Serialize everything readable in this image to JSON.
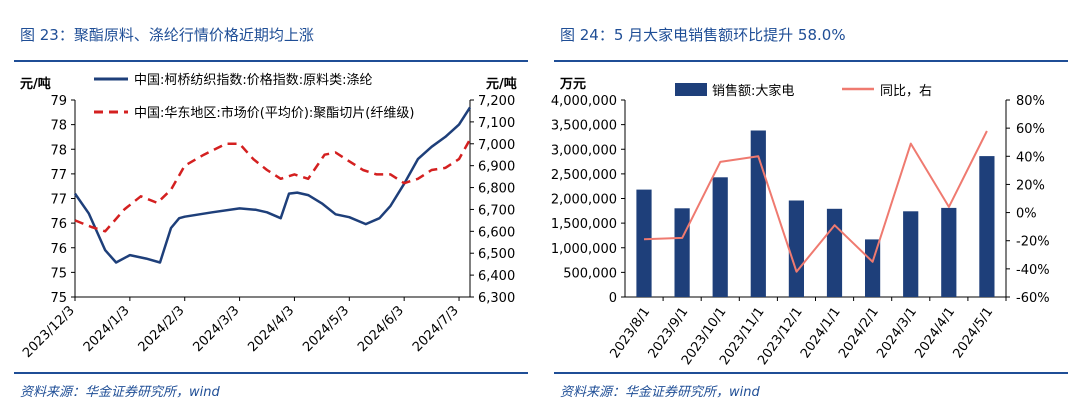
{
  "colors": {
    "brand": "#1f4e96",
    "navy": "#1e3f7a",
    "red": "#d42020",
    "salmon": "#ef7a70",
    "axis": "#000000"
  },
  "left_panel": {
    "figure_title": "图 23：聚酯原料、涤纶行情价格近期均上涨",
    "source": "资料来源：华金证券研究所，wind",
    "chart_data": {
      "type": "line",
      "title": "",
      "left_unit": "元/吨",
      "right_unit": "元/吨",
      "left_ticks": [
        "75",
        "75",
        "76",
        "76",
        "77",
        "77",
        "78",
        "78",
        "79"
      ],
      "right_ticks": [
        "6,300",
        "6,400",
        "6,500",
        "6,600",
        "6,700",
        "6,800",
        "6,900",
        "7,000",
        "7,100",
        "7,200"
      ],
      "ylim_left": [
        75.0,
        79.0
      ],
      "ylim_right": [
        6300,
        7200
      ],
      "x_ticks": [
        "2023/12/3",
        "2024/1/3",
        "2024/2/3",
        "2024/3/3",
        "2024/4/3",
        "2024/5/3",
        "2024/6/3",
        "2024/7/3"
      ],
      "series": [
        {
          "name": "中国:柯桥纺织指数:价格指数:原料类:涤纶",
          "axis": "left",
          "style": "solid",
          "x": [
            0,
            0.25,
            0.55,
            0.75,
            1.0,
            1.3,
            1.55,
            1.75,
            1.9,
            2.0,
            2.5,
            3.0,
            3.3,
            3.5,
            3.75,
            3.9,
            4.05,
            4.25,
            4.5,
            4.75,
            5.0,
            5.3,
            5.55,
            5.75,
            6.0,
            6.25,
            6.5,
            6.75,
            7.0,
            7.2
          ],
          "values": [
            77.1,
            76.7,
            75.95,
            75.7,
            75.85,
            75.78,
            75.7,
            76.4,
            76.6,
            76.63,
            76.72,
            76.8,
            76.77,
            76.72,
            76.6,
            77.1,
            77.12,
            77.07,
            76.9,
            76.68,
            76.62,
            76.48,
            76.6,
            76.85,
            77.3,
            77.8,
            78.05,
            78.25,
            78.5,
            78.85
          ]
        },
        {
          "name": "中国:华东地区:市场价(平均价):聚酯切片(纤维级)",
          "axis": "right",
          "style": "dashed",
          "x": [
            0,
            0.3,
            0.55,
            0.9,
            1.2,
            1.5,
            1.75,
            2.0,
            2.35,
            2.75,
            3.0,
            3.25,
            3.5,
            3.75,
            4.0,
            4.25,
            4.55,
            4.75,
            5.0,
            5.25,
            5.5,
            5.75,
            6.0,
            6.25,
            6.5,
            6.75,
            7.0,
            7.2
          ],
          "values": [
            6650,
            6620,
            6600,
            6700,
            6760,
            6730,
            6790,
            6900,
            6950,
            7000,
            7000,
            6930,
            6880,
            6840,
            6860,
            6840,
            6950,
            6960,
            6920,
            6880,
            6860,
            6860,
            6820,
            6840,
            6880,
            6890,
            6930,
            7020
          ]
        }
      ]
    }
  },
  "right_panel": {
    "figure_title": "图 24：5 月大家电销售额环比提升 58.0%",
    "source": "资料来源：华金证券研究所，wind",
    "chart_data": {
      "type": "bar",
      "title": "",
      "left_unit": "万元",
      "left_ticks": [
        "0",
        "500,000",
        "1,000,000",
        "1,500,000",
        "2,000,000",
        "2,500,000",
        "3,000,000",
        "3,500,000",
        "4,000,000"
      ],
      "right_ticks": [
        "-60%",
        "-40%",
        "-20%",
        "0%",
        "20%",
        "40%",
        "60%",
        "80%"
      ],
      "ylim_left": [
        0,
        4000000
      ],
      "ylim_right": [
        -60,
        80
      ],
      "categories": [
        "2023/8/1",
        "2023/9/1",
        "2023/10/1",
        "2023/11/1",
        "2023/12/1",
        "2024/1/1",
        "2024/2/1",
        "2024/3/1",
        "2024/4/1",
        "2024/5/1"
      ],
      "series": [
        {
          "name": "销售额:大家电",
          "type": "bar",
          "axis": "left",
          "values": [
            2180000,
            1800000,
            2430000,
            3380000,
            1960000,
            1790000,
            1170000,
            1740000,
            1810000,
            2860000
          ]
        },
        {
          "name": "同比，右",
          "type": "line",
          "axis": "right",
          "values": [
            -19,
            -18,
            36,
            40,
            -42,
            -9,
            -35,
            49,
            4,
            58
          ]
        }
      ]
    }
  }
}
